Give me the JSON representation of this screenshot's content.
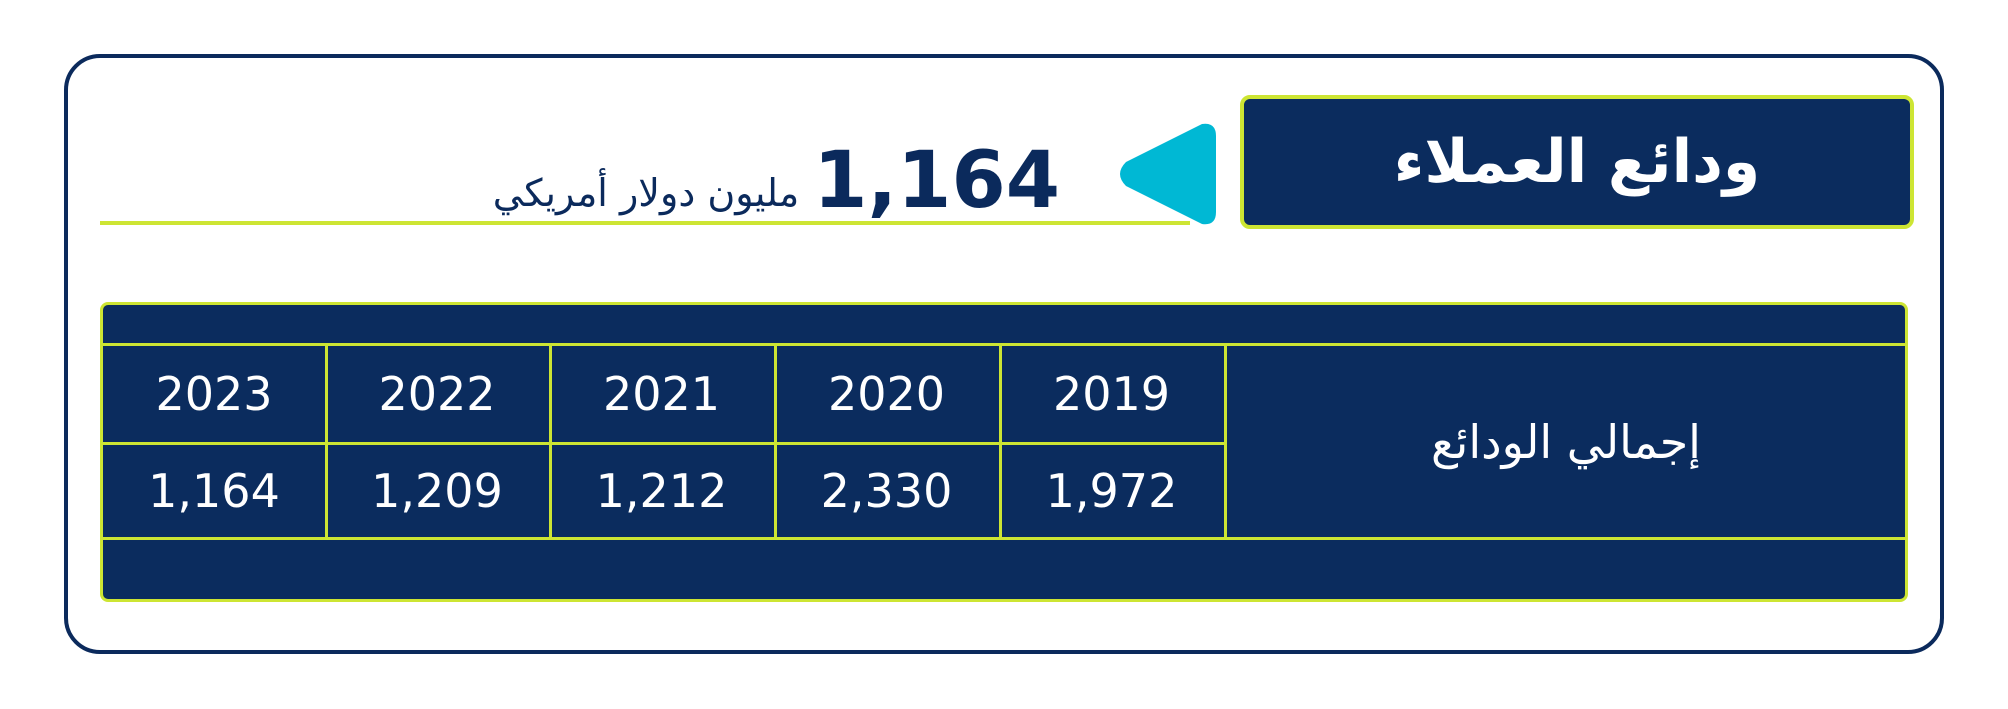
{
  "title": "ودائع العملاء",
  "headline": {
    "value": "1,164",
    "unit": "مليون دولار أمريكي"
  },
  "table": {
    "row_label": "إجمالي الودائع",
    "years": [
      "2019",
      "2020",
      "2021",
      "2022",
      "2023"
    ],
    "values": [
      "1,972",
      "2,330",
      "1,212",
      "1,209",
      "1,164"
    ]
  },
  "colors": {
    "navy": "#0b2c5e",
    "accent_green": "#cde533",
    "accent_cyan": "#00b8d4"
  }
}
